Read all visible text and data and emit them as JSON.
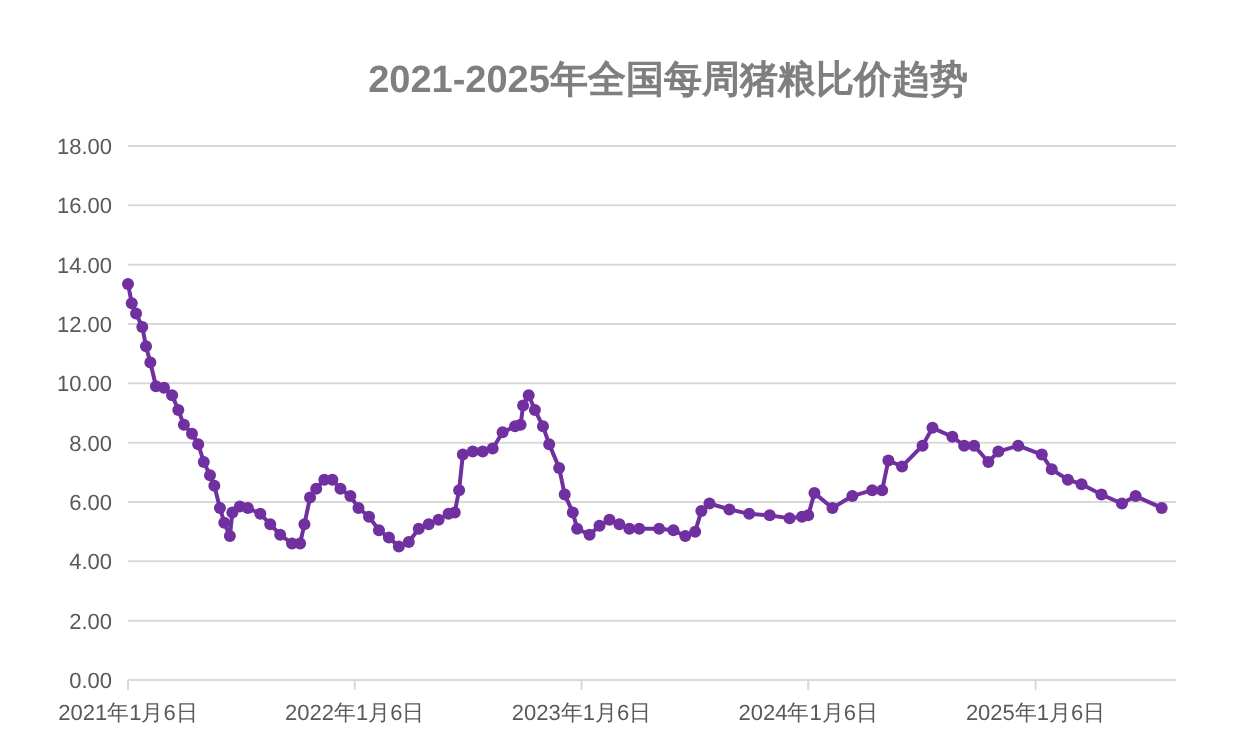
{
  "chart_data": {
    "type": "line",
    "title": "2021-2025年全国每周猪粮比价趋势",
    "x": [
      "2021-01-06",
      "2021-01-12",
      "2021-01-19",
      "2021-01-29",
      "2021-02-04",
      "2021-02-11",
      "2021-02-20",
      "2021-03-05",
      "2021-03-18",
      "2021-03-28",
      "2021-04-06",
      "2021-04-19",
      "2021-04-29",
      "2021-05-08",
      "2021-05-18",
      "2021-05-25",
      "2021-06-03",
      "2021-06-10",
      "2021-06-19",
      "2021-06-23",
      "2021-07-05",
      "2021-07-18",
      "2021-08-07",
      "2021-08-23",
      "2021-09-08",
      "2021-09-27",
      "2021-10-10",
      "2021-10-17",
      "2021-10-26",
      "2021-11-05",
      "2021-11-18",
      "2021-12-01",
      "2021-12-14",
      "2021-12-30",
      "2022-01-12",
      "2022-01-29",
      "2022-02-14",
      "2022-03-02",
      "2022-03-18",
      "2022-04-03",
      "2022-04-19",
      "2022-05-05",
      "2022-05-21",
      "2022-06-06",
      "2022-06-16",
      "2022-06-23",
      "2022-06-29",
      "2022-07-15",
      "2022-07-31",
      "2022-08-16",
      "2022-09-01",
      "2022-09-21",
      "2022-09-30",
      "2022-10-04",
      "2022-10-13",
      "2022-10-23",
      "2022-11-05",
      "2022-11-15",
      "2022-12-01",
      "2022-12-10",
      "2022-12-23",
      "2022-12-30",
      "2023-01-19",
      "2023-02-04",
      "2023-02-20",
      "2023-03-08",
      "2023-03-24",
      "2023-04-09",
      "2023-05-11",
      "2023-06-03",
      "2023-06-22",
      "2023-07-08",
      "2023-07-18",
      "2023-07-31",
      "2023-09-01",
      "2023-10-03",
      "2023-11-05",
      "2023-12-07",
      "2023-12-27",
      "2024-01-06",
      "2024-01-16",
      "2024-02-14",
      "2024-03-17",
      "2024-04-18",
      "2024-05-04",
      "2024-05-14",
      "2024-06-05",
      "2024-07-08",
      "2024-07-24",
      "2024-08-25",
      "2024-09-13",
      "2024-09-29",
      "2024-10-22",
      "2024-11-07",
      "2024-12-09",
      "2025-01-16",
      "2025-02-01",
      "2025-02-27",
      "2025-03-21",
      "2025-04-22",
      "2025-05-25",
      "2025-06-16",
      "2025-07-28"
    ],
    "series": [
      {
        "color": "#7030a0",
        "values": [
          13.35,
          12.7,
          12.35,
          11.9,
          11.25,
          10.7,
          9.9,
          9.85,
          9.6,
          9.1,
          8.6,
          8.3,
          7.95,
          7.35,
          6.9,
          6.55,
          5.8,
          5.3,
          4.85,
          5.65,
          5.85,
          5.8,
          5.6,
          5.25,
          4.9,
          4.6,
          4.6,
          5.25,
          6.15,
          6.45,
          6.75,
          6.75,
          6.45,
          6.2,
          5.8,
          5.5,
          5.05,
          4.8,
          4.5,
          4.65,
          5.1,
          5.25,
          5.4,
          5.6,
          5.65,
          6.4,
          7.6,
          7.7,
          7.7,
          7.8,
          8.35,
          8.55,
          8.6,
          9.25,
          9.6,
          9.1,
          8.55,
          7.95,
          7.15,
          6.25,
          5.65,
          5.1,
          4.9,
          5.2,
          5.4,
          5.25,
          5.1,
          5.1,
          5.1,
          5.05,
          4.85,
          5.0,
          5.7,
          5.95,
          5.75,
          5.6,
          5.55,
          5.45,
          5.5,
          5.55,
          6.3,
          5.8,
          6.2,
          6.4,
          6.4,
          7.4,
          7.2,
          7.9,
          8.5,
          8.2,
          7.9,
          7.9,
          7.35,
          7.7,
          7.9,
          7.6,
          7.1,
          6.75,
          6.6,
          6.25,
          5.95,
          6.2,
          5.8
        ]
      }
    ],
    "xlim": [
      "2021-01-06",
      "2025-08-20"
    ],
    "xticks": [
      {
        "value": "2021-01-06",
        "label": "2021年1月6日"
      },
      {
        "value": "2022-01-06",
        "label": "2022年1月6日"
      },
      {
        "value": "2023-01-06",
        "label": "2023年1月6日"
      },
      {
        "value": "2024-01-06",
        "label": "2024年1月6日"
      },
      {
        "value": "2025-01-06",
        "label": "2025年1月6日"
      }
    ],
    "ylim": [
      0,
      18
    ],
    "yticks": [
      {
        "value": 0,
        "label": "0.00"
      },
      {
        "value": 2,
        "label": "2.00"
      },
      {
        "value": 4,
        "label": "4.00"
      },
      {
        "value": 6,
        "label": "6.00"
      },
      {
        "value": 8,
        "label": "8.00"
      },
      {
        "value": 10,
        "label": "10.00"
      },
      {
        "value": 12,
        "label": "12.00"
      },
      {
        "value": 14,
        "label": "14.00"
      },
      {
        "value": 16,
        "label": "16.00"
      },
      {
        "value": 18,
        "label": "18.00"
      }
    ],
    "grid": "y",
    "marker": "circle",
    "line_style": "solid"
  }
}
